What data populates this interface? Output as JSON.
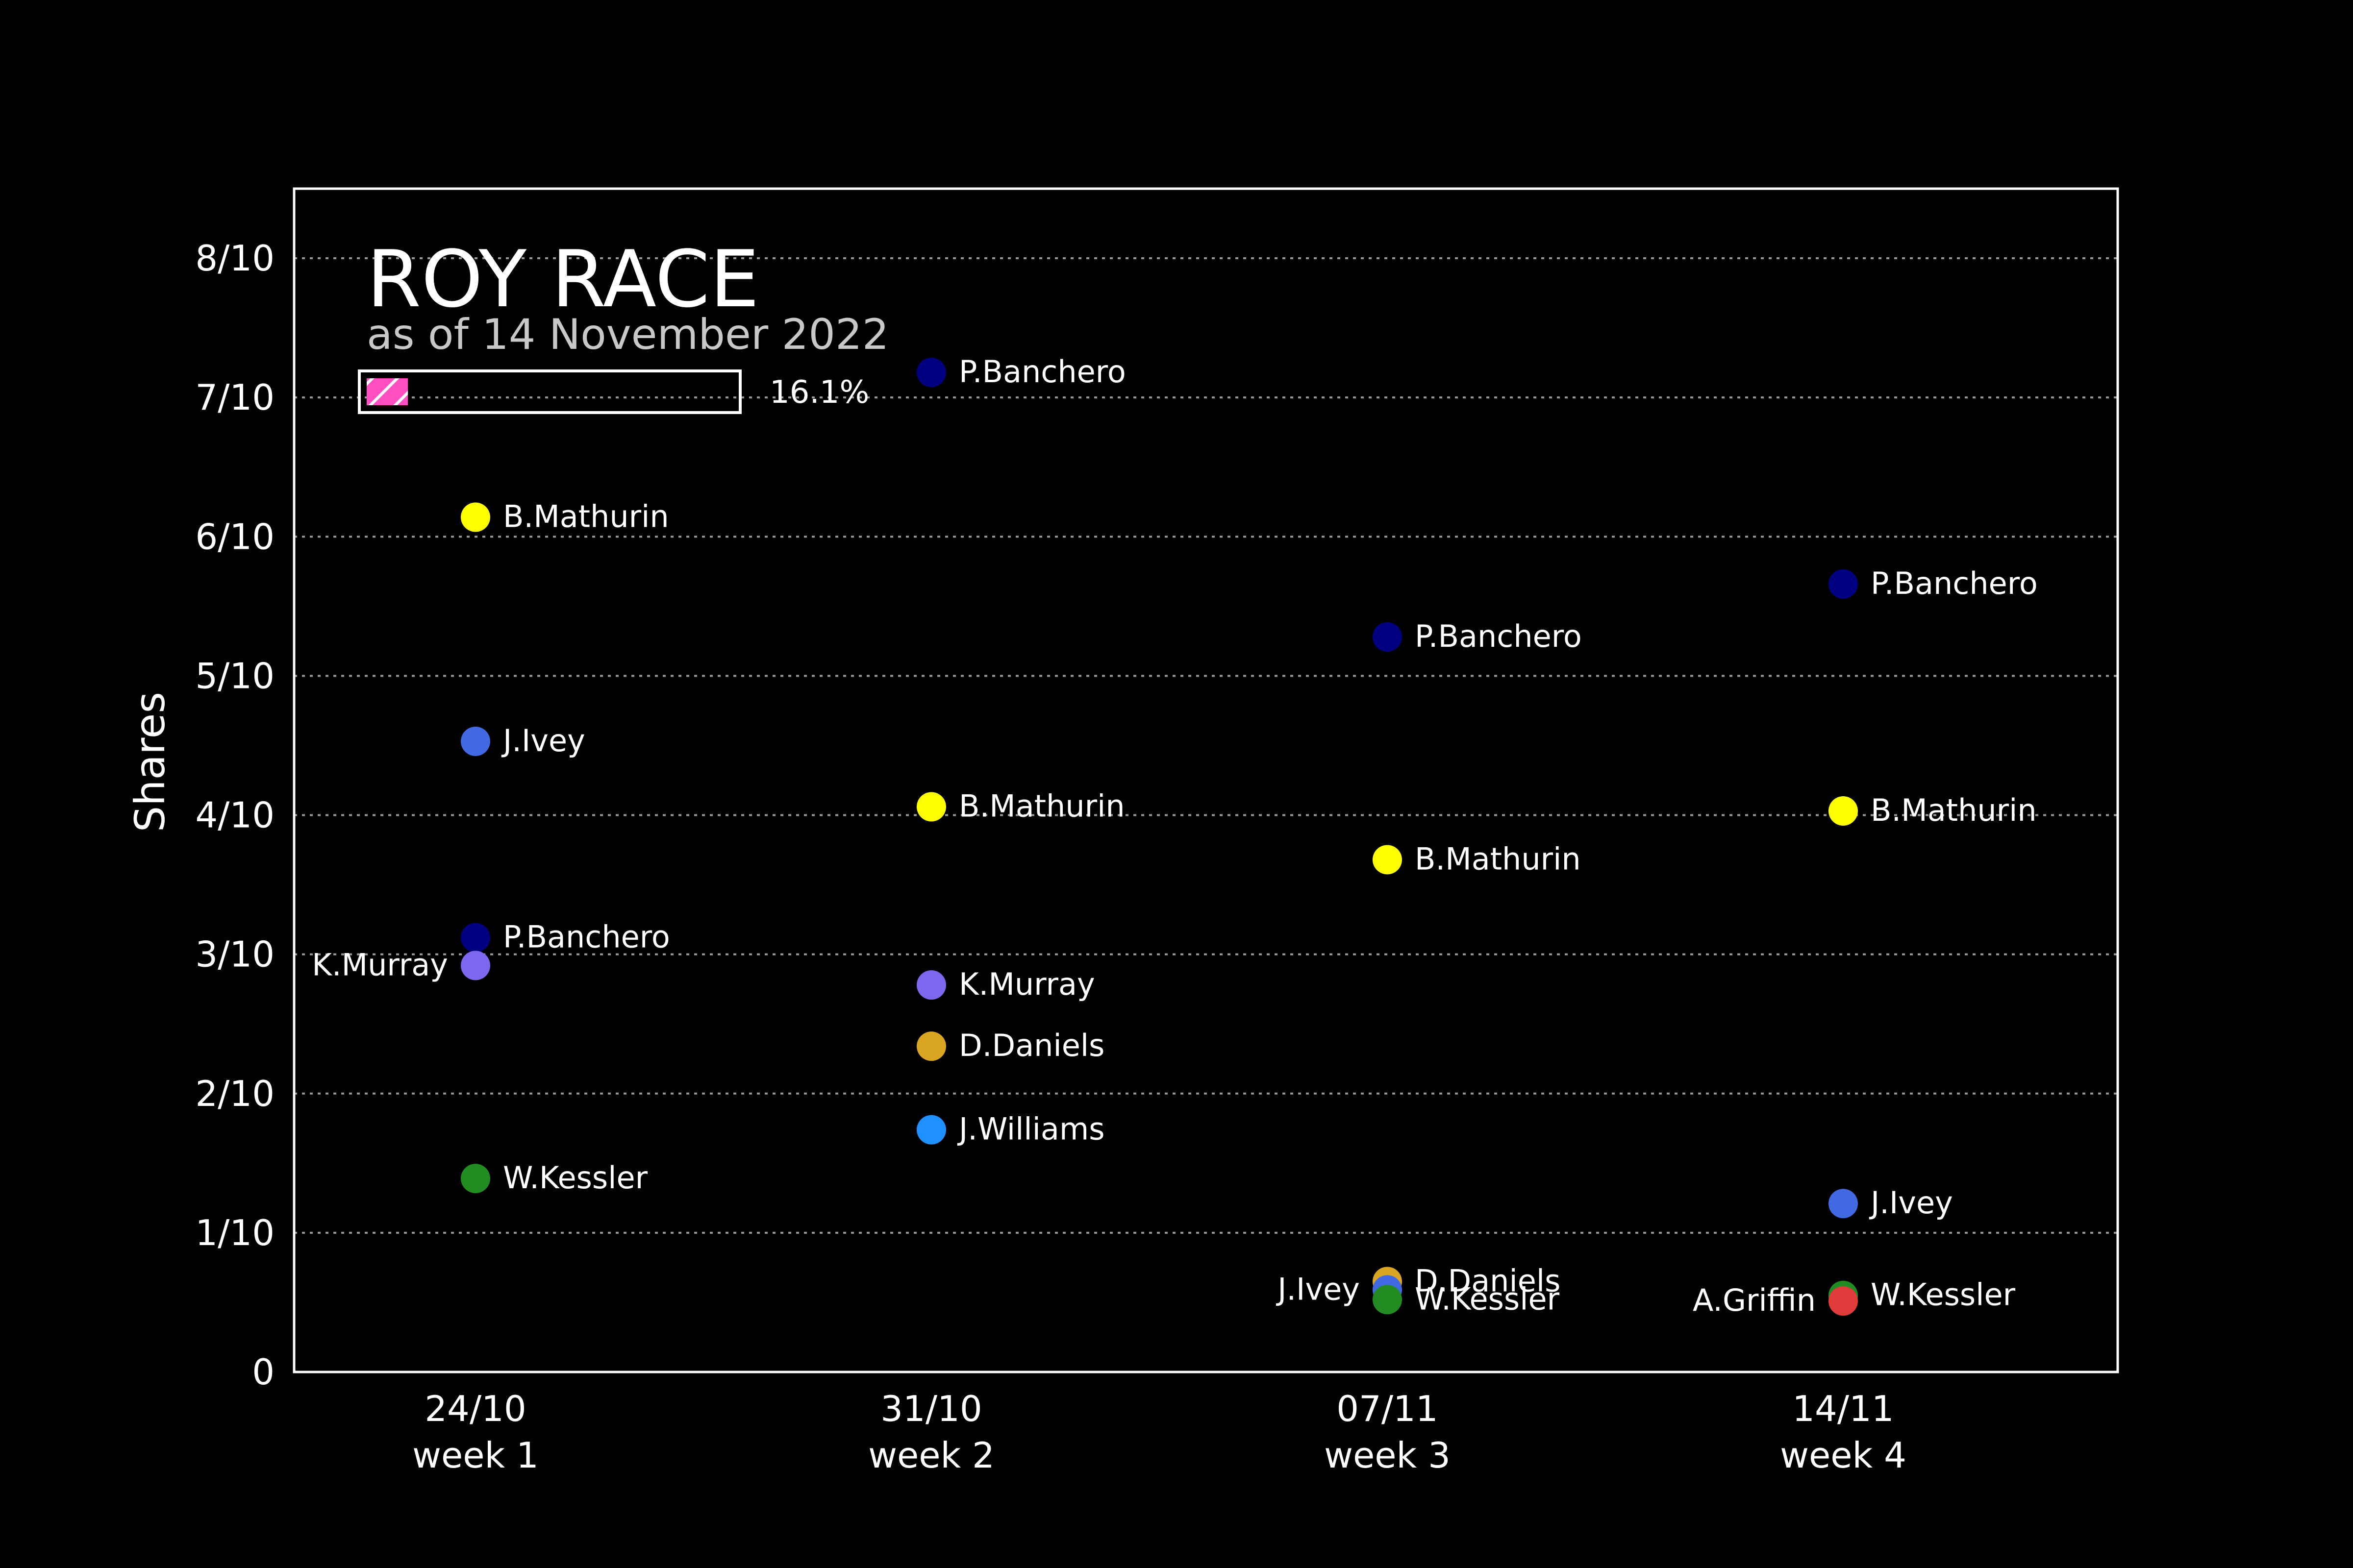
{
  "chart_data": {
    "type": "scatter",
    "title": "ROY RACE",
    "subtitle": "as of 14 November 2022",
    "ylabel": "Shares",
    "xlabel": "",
    "ylim": [
      0,
      0.85
    ],
    "y_ticks": [
      {
        "value": 0,
        "label": "0"
      },
      {
        "value": 0.1,
        "label": "1/10"
      },
      {
        "value": 0.2,
        "label": "2/10"
      },
      {
        "value": 0.3,
        "label": "3/10"
      },
      {
        "value": 0.4,
        "label": "4/10"
      },
      {
        "value": 0.5,
        "label": "5/10"
      },
      {
        "value": 0.6,
        "label": "6/10"
      },
      {
        "value": 0.7,
        "label": "7/10"
      },
      {
        "value": 0.8,
        "label": "8/10"
      }
    ],
    "grid": "horizontal dotted",
    "categories": [
      {
        "date": "24/10",
        "week": "week 1"
      },
      {
        "date": "31/10",
        "week": "week 2"
      },
      {
        "date": "07/11",
        "week": "week 3"
      },
      {
        "date": "14/11",
        "week": "week 4"
      }
    ],
    "progress": {
      "value": 0.161,
      "label": "16.1%",
      "fill_color": "#ff4fc1"
    },
    "points": [
      {
        "week": 0,
        "player": "B.Mathurin",
        "value": 0.614,
        "color": "#ffff00",
        "label_side": "right"
      },
      {
        "week": 0,
        "player": "J.Ivey",
        "value": 0.453,
        "color": "#4169e1",
        "label_side": "right"
      },
      {
        "week": 0,
        "player": "P.Banchero",
        "value": 0.312,
        "color": "#000080",
        "label_side": "right"
      },
      {
        "week": 0,
        "player": "K.Murray",
        "value": 0.292,
        "color": "#7b68ee",
        "label_side": "left"
      },
      {
        "week": 0,
        "player": "W.Kessler",
        "value": 0.139,
        "color": "#228b22",
        "label_side": "right"
      },
      {
        "week": 1,
        "player": "P.Banchero",
        "value": 0.718,
        "color": "#000080",
        "label_side": "right"
      },
      {
        "week": 1,
        "player": "B.Mathurin",
        "value": 0.406,
        "color": "#ffff00",
        "label_side": "right"
      },
      {
        "week": 1,
        "player": "K.Murray",
        "value": 0.278,
        "color": "#7b68ee",
        "label_side": "right"
      },
      {
        "week": 1,
        "player": "D.Daniels",
        "value": 0.234,
        "color": "#daa520",
        "label_side": "right"
      },
      {
        "week": 1,
        "player": "J.Williams",
        "value": 0.174,
        "color": "#1e90ff",
        "label_side": "right"
      },
      {
        "week": 2,
        "player": "P.Banchero",
        "value": 0.528,
        "color": "#000080",
        "label_side": "right"
      },
      {
        "week": 2,
        "player": "B.Mathurin",
        "value": 0.368,
        "color": "#ffff00",
        "label_side": "right"
      },
      {
        "week": 2,
        "player": "D.Daniels",
        "value": 0.065,
        "color": "#daa520",
        "label_side": "right"
      },
      {
        "week": 2,
        "player": "J.Ivey",
        "value": 0.059,
        "color": "#4169e1",
        "label_side": "left"
      },
      {
        "week": 2,
        "player": "W.Kessler",
        "value": 0.052,
        "color": "#228b22",
        "label_side": "right"
      },
      {
        "week": 3,
        "player": "P.Banchero",
        "value": 0.566,
        "color": "#000080",
        "label_side": "right"
      },
      {
        "week": 3,
        "player": "B.Mathurin",
        "value": 0.403,
        "color": "#ffff00",
        "label_side": "right"
      },
      {
        "week": 3,
        "player": "J.Ivey",
        "value": 0.121,
        "color": "#4169e1",
        "label_side": "right"
      },
      {
        "week": 3,
        "player": "W.Kessler",
        "value": 0.055,
        "color": "#228b22",
        "label_side": "right"
      },
      {
        "week": 3,
        "player": "A.Griffin",
        "value": 0.051,
        "color": "#e03c3c",
        "label_side": "left"
      }
    ]
  }
}
